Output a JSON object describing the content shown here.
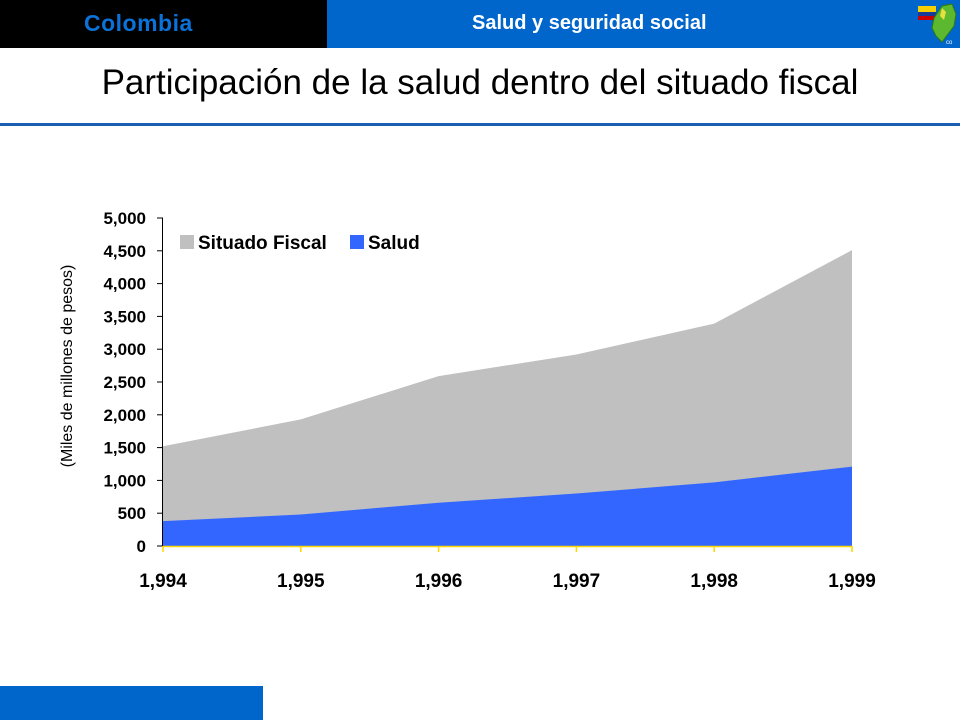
{
  "header": {
    "brand": "Colombia",
    "section": "Salud y seguridad social",
    "logo_icon": "colombia-map-flag-logo"
  },
  "page": {
    "title": "Participación de la salud dentro del situado fiscal"
  },
  "colors": {
    "header_blue": "#0066cc",
    "brand_text": "#0a72d8",
    "situado_fiscal": "#c0c0c0",
    "salud": "#3366ff",
    "axis_yellow": "#ffd700"
  },
  "chart_data": {
    "type": "area",
    "title": "",
    "xlabel": "",
    "ylabel": "(Miles de millones de pesos)",
    "categories": [
      "1,994",
      "1,995",
      "1,996",
      "1,997",
      "1,998",
      "1,999"
    ],
    "ylim": [
      0,
      5000
    ],
    "yticks": [
      {
        "value": 0,
        "label": "0"
      },
      {
        "value": 500,
        "label": "500"
      },
      {
        "value": 1000,
        "label": "1,000"
      },
      {
        "value": 1500,
        "label": "1,500"
      },
      {
        "value": 2000,
        "label": "2,000"
      },
      {
        "value": 2500,
        "label": "2,500"
      },
      {
        "value": 3000,
        "label": "3,000"
      },
      {
        "value": 3500,
        "label": "3,500"
      },
      {
        "value": 4000,
        "label": "4,000"
      },
      {
        "value": 4500,
        "label": "4,500"
      },
      {
        "value": 5000,
        "label": "5,000"
      }
    ],
    "grid": false,
    "legend_position": "top-left",
    "series": [
      {
        "name": "Situado Fiscal",
        "values": [
          1520,
          1930,
          2590,
          2920,
          3390,
          4510
        ]
      },
      {
        "name": "Salud",
        "values": [
          380,
          480,
          660,
          800,
          970,
          1210
        ]
      }
    ]
  }
}
